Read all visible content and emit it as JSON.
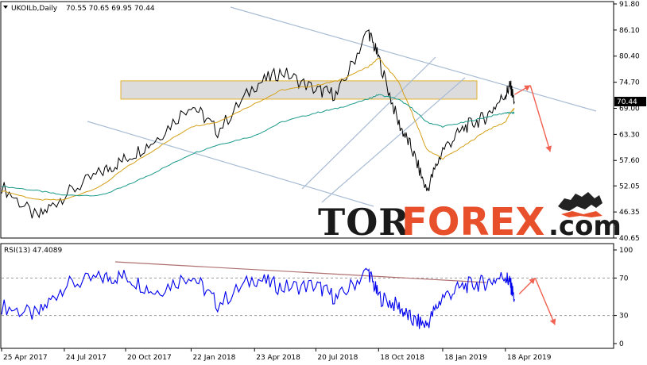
{
  "header": {
    "symbol": "UKOILb,Daily",
    "ohlc": "70.55 70.65 69.95 70.44"
  },
  "price_axis": {
    "labels": [
      "91.80",
      "86.10",
      "80.40",
      "74.70",
      "69.00",
      "63.30",
      "57.60",
      "52.05",
      "46.35",
      "40.65"
    ],
    "current_price": "70.44"
  },
  "rsi_panel": {
    "label": "RSI(13) 47.4089",
    "levels": [
      "100",
      "70",
      "30",
      "0"
    ]
  },
  "time_axis": {
    "labels": [
      "25 Apr 2017",
      "24 Jul 2017",
      "20 Oct 2017",
      "22 Jan 2018",
      "23 Apr 2018",
      "20 Jul 2018",
      "18 Oct 2018",
      "18 Jan 2019",
      "18 Apr 2019"
    ]
  },
  "logo": {
    "part1": "TOR",
    "part2": "FOREX",
    "part3": ".com"
  },
  "colors": {
    "price": "#000000",
    "ma_fast": "#d4a017",
    "ma_slow": "#1a9a8a",
    "rsi": "#0000ee",
    "channel": "#a8bcd4",
    "rsi_trend": "#b07070",
    "zone_fill": "#d3d3d3",
    "zone_border": "#e3b030",
    "forecast_arrow": "#f06050",
    "logo_accent": "#e8502c"
  },
  "chart_data": [
    {
      "type": "line",
      "title": "UKOILb,Daily",
      "x": [
        "2017-04-25",
        "2017-06-15",
        "2017-07-24",
        "2017-09-15",
        "2017-10-20",
        "2017-12-01",
        "2018-01-22",
        "2018-03-01",
        "2018-04-23",
        "2018-06-01",
        "2018-07-20",
        "2018-08-20",
        "2018-10-03",
        "2018-10-18",
        "2018-11-15",
        "2018-12-05",
        "2018-12-26",
        "2019-01-18",
        "2019-02-20",
        "2019-03-20",
        "2019-04-18",
        "2019-04-25",
        "2019-05-01"
      ],
      "series": [
        {
          "name": "Price",
          "values": [
            52,
            45,
            50,
            55,
            58,
            62,
            70,
            64,
            74,
            77,
            73,
            72,
            86,
            80,
            66,
            60,
            51,
            60,
            65,
            67,
            72,
            74,
            70.44
          ]
        },
        {
          "name": "MA Fast",
          "values": [
            51,
            49,
            49,
            52,
            56,
            60,
            65,
            66,
            70,
            73,
            74,
            75,
            78,
            80,
            75,
            68,
            60,
            58,
            61,
            64,
            66,
            68,
            69
          ]
        },
        {
          "name": "MA Slow",
          "values": [
            52,
            51,
            50,
            50,
            52,
            55,
            59,
            61,
            63,
            66,
            68,
            69,
            71,
            72,
            71,
            69,
            66,
            65,
            66,
            67,
            68,
            68,
            68
          ]
        }
      ],
      "ylim": [
        40.65,
        91.8
      ],
      "yticks": [
        91.8,
        86.1,
        80.4,
        74.7,
        69.0,
        63.3,
        57.6,
        52.05,
        46.35,
        40.65
      ],
      "resistance_zone": [
        71.0,
        75.0
      ],
      "forecast": [
        72,
        74,
        59.5
      ],
      "grid": false
    },
    {
      "type": "line",
      "title": "RSI(13) 47.4089",
      "x": [
        "2017-04-25",
        "2017-06-15",
        "2017-07-24",
        "2017-09-15",
        "2017-10-20",
        "2017-12-01",
        "2018-01-22",
        "2018-03-01",
        "2018-04-23",
        "2018-06-01",
        "2018-07-20",
        "2018-08-20",
        "2018-10-03",
        "2018-10-18",
        "2018-11-15",
        "2018-12-05",
        "2018-12-26",
        "2019-01-18",
        "2019-02-20",
        "2019-03-20",
        "2019-04-18",
        "2019-04-25",
        "2019-05-01"
      ],
      "series": [
        {
          "name": "RSI",
          "values": [
            40,
            30,
            62,
            70,
            72,
            55,
            74,
            42,
            70,
            60,
            62,
            48,
            78,
            50,
            40,
            25,
            20,
            50,
            62,
            65,
            72,
            64,
            47.41
          ]
        }
      ],
      "ylim": [
        0,
        100
      ],
      "levels": [
        70,
        30
      ],
      "forecast": [
        70,
        53,
        20
      ],
      "grid": true
    }
  ]
}
